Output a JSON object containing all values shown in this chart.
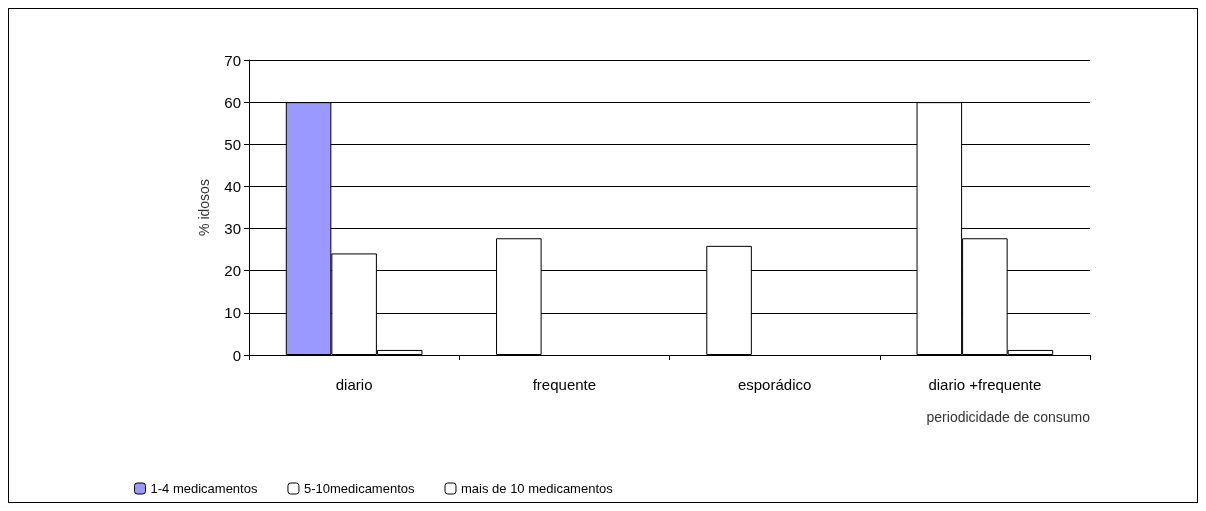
{
  "chart_data": {
    "type": "bar",
    "xlabel": "periodicidade de consumo",
    "ylabel": "% idosos",
    "categories": [
      "diario",
      "frequente",
      "esporádico",
      "diario +frequente"
    ],
    "series": [
      {
        "name": "1-4 medicamentos",
        "color": "#9999ff",
        "colors": [
          "#9999ff",
          "#ffffff",
          "#ffffff",
          "#ffffff"
        ],
        "values": [
          60,
          27.7,
          25.9,
          60
        ]
      },
      {
        "name": "5-10medicamentos",
        "color": "#ffffff",
        "values": [
          24.1,
          null,
          null,
          27.7
        ]
      },
      {
        "name": "mais de 10 medicamentos",
        "color": "#ffffff",
        "values": [
          1.2,
          null,
          null,
          1.2
        ]
      }
    ],
    "ylim": [
      0,
      70
    ],
    "yticks": [
      0,
      10,
      20,
      30,
      40,
      50,
      60,
      70
    ],
    "grid": "y",
    "legend": "bottom"
  }
}
